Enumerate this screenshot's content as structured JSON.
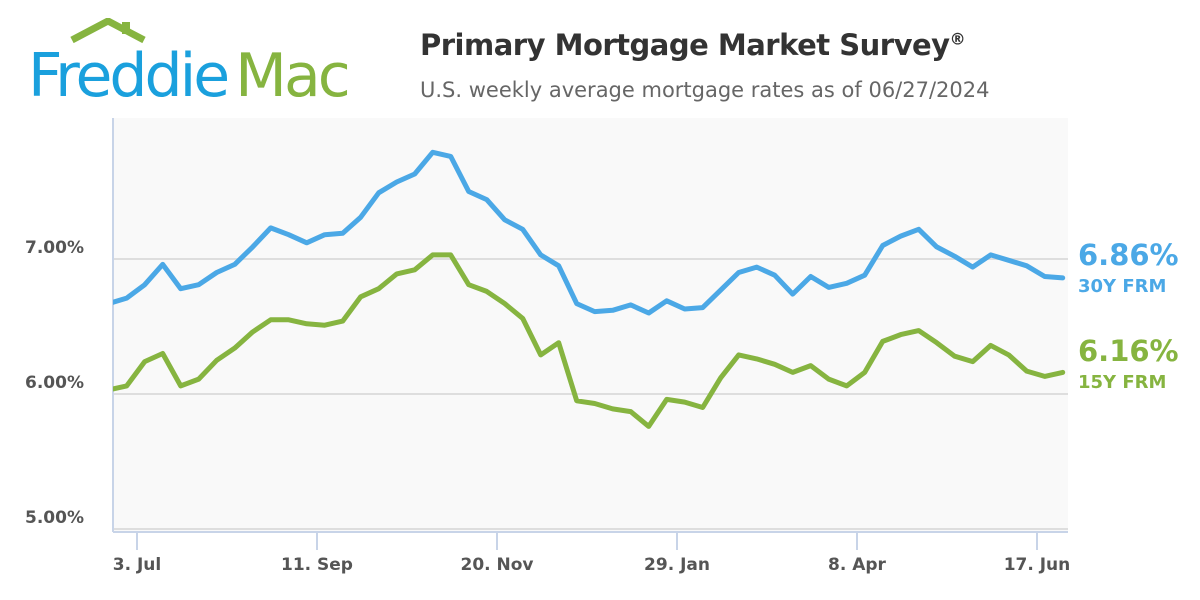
{
  "header": {
    "logo_text": "Freddie Mac",
    "title": "Primary Mortgage Market Survey",
    "title_mark": "®",
    "subtitle": "U.S. weekly average mortgage rates as of 06/27/2024"
  },
  "colors": {
    "frm30": "#4ba8e6",
    "frm15": "#86b440",
    "logo_blue": "#1aa0dd",
    "logo_green": "#86b440"
  },
  "chart_data": {
    "type": "line",
    "title": "Primary Mortgage Market Survey",
    "ylim": [
      5.0,
      8.0
    ],
    "yticks": [
      "5.00%",
      "6.00%",
      "7.00%"
    ],
    "ytick_values": [
      5,
      6,
      7
    ],
    "xticks": [
      "3. Jul",
      "11. Sep",
      "20. Nov",
      "29. Jan",
      "8. Apr",
      "17. Jun"
    ],
    "xtick_dates": [
      "2023-07-03",
      "2023-09-11",
      "2023-11-20",
      "2024-01-29",
      "2024-04-08",
      "2024-06-17"
    ],
    "grid": true,
    "x": [
      "2023-06-22",
      "2023-06-29",
      "2023-07-06",
      "2023-07-13",
      "2023-07-20",
      "2023-07-27",
      "2023-08-03",
      "2023-08-10",
      "2023-08-17",
      "2023-08-24",
      "2023-08-31",
      "2023-09-07",
      "2023-09-14",
      "2023-09-21",
      "2023-09-28",
      "2023-10-05",
      "2023-10-12",
      "2023-10-19",
      "2023-10-26",
      "2023-11-02",
      "2023-11-09",
      "2023-11-16",
      "2023-11-23",
      "2023-11-30",
      "2023-12-07",
      "2023-12-14",
      "2023-12-21",
      "2023-12-28",
      "2024-01-04",
      "2024-01-11",
      "2024-01-18",
      "2024-01-25",
      "2024-02-01",
      "2024-02-08",
      "2024-02-15",
      "2024-02-22",
      "2024-02-29",
      "2024-03-07",
      "2024-03-14",
      "2024-03-21",
      "2024-03-28",
      "2024-04-04",
      "2024-04-11",
      "2024-04-18",
      "2024-04-25",
      "2024-05-02",
      "2024-05-09",
      "2024-05-16",
      "2024-05-23",
      "2024-05-30",
      "2024-06-06",
      "2024-06-13",
      "2024-06-20",
      "2024-06-27"
    ],
    "series": [
      {
        "name": "30Y FRM",
        "latest": "6.86%",
        "values": [
          6.67,
          6.71,
          6.81,
          6.96,
          6.78,
          6.81,
          6.9,
          6.96,
          7.09,
          7.23,
          7.18,
          7.12,
          7.18,
          7.19,
          7.31,
          7.49,
          7.57,
          7.63,
          7.79,
          7.76,
          7.5,
          7.44,
          7.29,
          7.22,
          7.03,
          6.95,
          6.67,
          6.61,
          6.62,
          6.66,
          6.6,
          6.69,
          6.63,
          6.64,
          6.77,
          6.9,
          6.94,
          6.88,
          6.74,
          6.87,
          6.79,
          6.82,
          6.88,
          7.1,
          7.17,
          7.22,
          7.09,
          7.02,
          6.94,
          7.03,
          6.99,
          6.95,
          6.87,
          6.86
        ]
      },
      {
        "name": "15Y FRM",
        "latest": "6.16%",
        "values": [
          6.03,
          6.06,
          6.24,
          6.3,
          6.06,
          6.11,
          6.25,
          6.34,
          6.46,
          6.55,
          6.55,
          6.52,
          6.51,
          6.54,
          6.72,
          6.78,
          6.89,
          6.92,
          7.03,
          7.03,
          6.81,
          6.76,
          6.67,
          6.56,
          6.29,
          6.38,
          5.95,
          5.93,
          5.89,
          5.87,
          5.76,
          5.96,
          5.94,
          5.9,
          6.12,
          6.29,
          6.26,
          6.22,
          6.16,
          6.21,
          6.11,
          6.06,
          6.16,
          6.39,
          6.44,
          6.47,
          6.38,
          6.28,
          6.24,
          6.36,
          6.29,
          6.17,
          6.13,
          6.16
        ]
      }
    ]
  }
}
